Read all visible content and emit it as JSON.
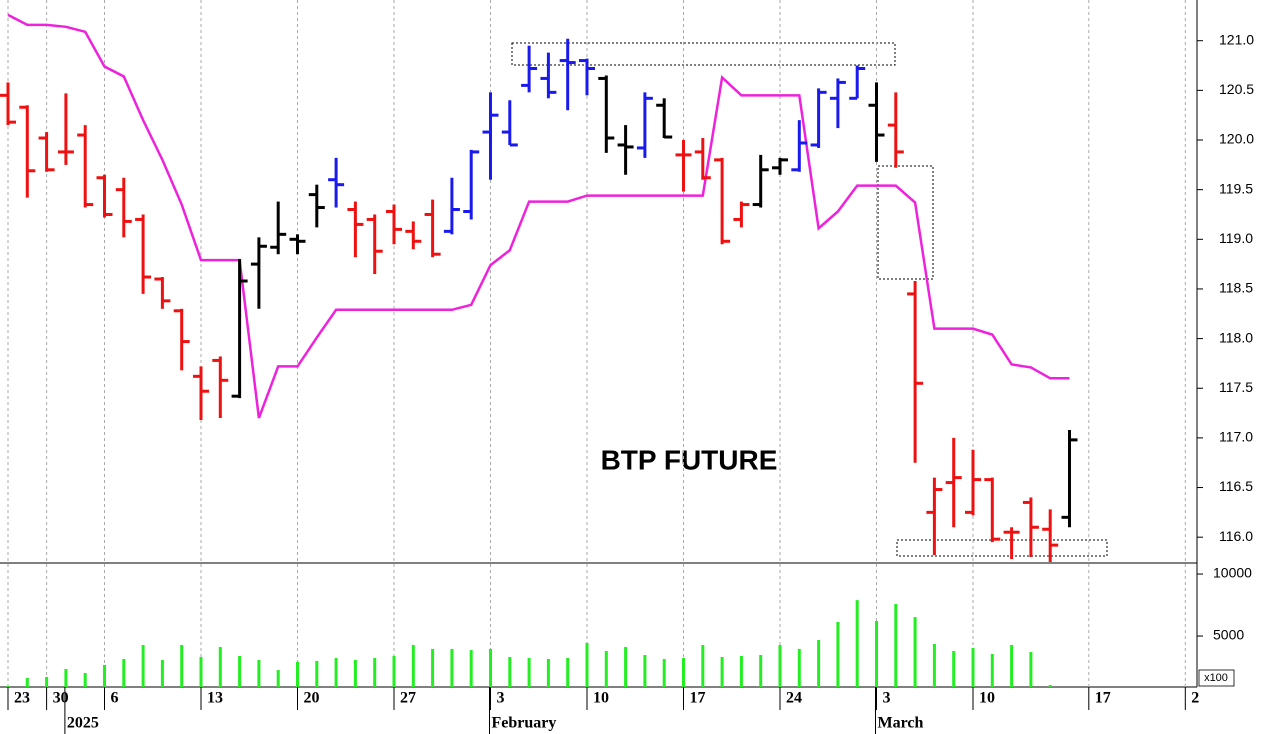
{
  "chart_data": {
    "type": "ohlc",
    "title": "BTP FUTURE",
    "categories": [
      "23",
      null,
      "30",
      null,
      null,
      "6",
      null,
      null,
      null,
      null,
      "13",
      null,
      null,
      null,
      null,
      "20",
      null,
      null,
      null,
      null,
      "27",
      null,
      null,
      null,
      null,
      "3",
      null,
      null,
      null,
      null,
      "10",
      null,
      null,
      null,
      null,
      "17",
      null,
      null,
      null,
      null,
      "24",
      null,
      null,
      null,
      null,
      "3",
      null,
      null,
      null,
      null,
      "10",
      null,
      null,
      null,
      null,
      null,
      "17",
      null,
      null,
      null,
      null,
      "2"
    ],
    "periods": [
      null,
      null,
      null,
      "2025",
      null,
      null,
      null,
      null,
      null,
      null,
      null,
      null,
      null,
      null,
      null,
      null,
      null,
      null,
      null,
      null,
      null,
      null,
      null,
      null,
      null,
      "February",
      null,
      null,
      null,
      null,
      null,
      null,
      null,
      null,
      null,
      null,
      null,
      null,
      null,
      null,
      null,
      null,
      null,
      null,
      null,
      "March",
      null,
      null,
      null,
      null,
      null,
      null,
      null,
      null,
      null,
      null,
      null,
      null,
      null,
      null,
      null,
      null
    ],
    "open": [
      120.45,
      120.33,
      120.02,
      119.88,
      120.05,
      119.62,
      119.5,
      119.2,
      118.6,
      118.28,
      117.62,
      117.78,
      117.42,
      118.75,
      118.92,
      119.0,
      119.45,
      119.6,
      119.3,
      119.2,
      119.28,
      119.08,
      119.25,
      119.08,
      119.28,
      120.08,
      120.08,
      120.55,
      120.62,
      120.8,
      120.8,
      120.62,
      119.95,
      119.92,
      120.35,
      119.85,
      119.88,
      119.8,
      119.2,
      119.35,
      119.72,
      119.7,
      119.95,
      120.42,
      120.42,
      120.35,
      120.15,
      118.45,
      116.25,
      116.55,
      116.25,
      116.58,
      116.05,
      116.35,
      116.08,
      116.2,
      null,
      null,
      null,
      null,
      null,
      null
    ],
    "high": [
      120.58,
      120.35,
      120.08,
      120.47,
      120.15,
      119.65,
      119.62,
      119.25,
      118.62,
      118.3,
      117.72,
      117.82,
      118.8,
      119.02,
      119.38,
      119.05,
      119.55,
      119.82,
      119.38,
      119.25,
      119.35,
      119.18,
      119.4,
      119.62,
      119.9,
      120.48,
      120.4,
      120.95,
      120.88,
      121.02,
      120.82,
      120.65,
      120.15,
      120.48,
      120.42,
      120.0,
      120.02,
      119.82,
      119.38,
      119.85,
      119.82,
      120.2,
      120.52,
      120.62,
      120.75,
      120.58,
      120.48,
      118.58,
      116.6,
      117.0,
      116.88,
      116.6,
      116.1,
      116.4,
      116.28,
      117.08,
      null,
      null,
      null,
      null,
      null,
      null
    ],
    "low": [
      120.15,
      119.42,
      119.68,
      119.75,
      119.32,
      119.22,
      119.02,
      118.45,
      118.3,
      117.68,
      117.18,
      117.2,
      117.4,
      118.3,
      118.85,
      118.85,
      119.12,
      119.32,
      118.82,
      118.65,
      118.95,
      118.9,
      118.82,
      119.05,
      119.2,
      119.6,
      119.95,
      120.48,
      120.42,
      120.3,
      120.45,
      119.87,
      119.65,
      119.82,
      120.02,
      119.48,
      119.6,
      118.95,
      119.12,
      119.32,
      119.65,
      119.68,
      119.92,
      120.12,
      120.42,
      119.78,
      119.72,
      116.75,
      115.82,
      116.1,
      116.22,
      115.95,
      115.78,
      115.8,
      115.75,
      116.1,
      null,
      null,
      null,
      null,
      null,
      null
    ],
    "close": [
      120.18,
      119.69,
      119.7,
      119.88,
      119.35,
      119.25,
      119.18,
      118.62,
      118.38,
      117.97,
      117.47,
      117.58,
      118.58,
      118.93,
      119.05,
      118.98,
      119.32,
      119.55,
      119.15,
      118.88,
      119.1,
      118.98,
      118.85,
      119.3,
      119.88,
      120.25,
      119.95,
      120.72,
      120.48,
      120.78,
      120.72,
      120.02,
      119.93,
      120.42,
      120.03,
      119.85,
      119.62,
      118.98,
      119.35,
      119.7,
      119.8,
      119.97,
      120.48,
      120.58,
      120.72,
      120.05,
      119.88,
      117.55,
      116.48,
      116.6,
      116.58,
      115.98,
      116.05,
      116.1,
      115.92,
      116.98,
      null,
      null,
      null,
      null,
      null,
      null
    ],
    "bar_colors": [
      "#ee1111",
      "#ee1111",
      "#ee1111",
      "#ee1111",
      "#ee1111",
      "#ee1111",
      "#ee1111",
      "#ee1111",
      "#ee1111",
      "#ee1111",
      "#ee1111",
      "#ee1111",
      "#000000",
      "#000000",
      "#000000",
      "#000000",
      "#000000",
      "#1a1aee",
      "#ee1111",
      "#ee1111",
      "#ee1111",
      "#ee1111",
      "#ee1111",
      "#1a1aee",
      "#1a1aee",
      "#1a1aee",
      "#1a1aee",
      "#1a1aee",
      "#1a1aee",
      "#1a1aee",
      "#1a1aee",
      "#000000",
      "#000000",
      "#1a1aee",
      "#000000",
      "#ee1111",
      "#ee1111",
      "#ee1111",
      "#ee1111",
      "#000000",
      "#000000",
      "#1a1aee",
      "#1a1aee",
      "#1a1aee",
      "#1a1aee",
      "#000000",
      "#ee1111",
      "#ee1111",
      "#ee1111",
      "#ee1111",
      "#ee1111",
      "#ee1111",
      "#ee1111",
      "#ee1111",
      "#ee1111",
      "#000000",
      null,
      null,
      null,
      null,
      null,
      null
    ],
    "overlay": {
      "color": "#ee22dd",
      "values": [
        121.26,
        121.16,
        121.16,
        121.14,
        121.09,
        120.74,
        120.64,
        120.2,
        119.8,
        119.35,
        118.79,
        118.79,
        118.79,
        117.2,
        117.72,
        117.72,
        118.01,
        118.29,
        118.29,
        118.29,
        118.29,
        118.29,
        118.29,
        118.29,
        118.34,
        118.74,
        118.89,
        119.38,
        119.38,
        119.38,
        119.44,
        119.44,
        119.44,
        119.44,
        119.44,
        119.44,
        119.44,
        120.63,
        120.45,
        120.45,
        120.45,
        120.45,
        119.11,
        119.28,
        119.54,
        119.54,
        119.54,
        119.37,
        118.1,
        118.1,
        118.1,
        118.04,
        117.74,
        117.71,
        117.6,
        117.6,
        null,
        null,
        null,
        null,
        null,
        null
      ]
    },
    "ylim": [
      115.74,
      121.41
    ],
    "yticks": [
      {
        "value": 116,
        "label": "116.0"
      },
      116.5,
      {
        "value": 117,
        "label": "117.0"
      },
      117.5,
      {
        "value": 118,
        "label": "118.0"
      },
      118.5,
      {
        "value": 119,
        "label": "119.0"
      },
      119.5,
      {
        "value": 120,
        "label": "120.0"
      },
      120.5,
      {
        "value": 121,
        "label": "121.0"
      }
    ],
    "grid": true,
    "volume": {
      "color": "#22ee22",
      "unit_label": "x100",
      "values": [
        970,
        1620,
        1700,
        2340,
        2020,
        2670,
        3150,
        4280,
        3070,
        4280,
        3310,
        4120,
        3390,
        3070,
        2260,
        2910,
        2990,
        3230,
        3070,
        3230,
        3390,
        4280,
        3960,
        3960,
        3870,
        3960,
        3310,
        3230,
        3150,
        3230,
        4440,
        3790,
        4120,
        3470,
        3150,
        3230,
        4280,
        3310,
        3390,
        3470,
        4280,
        3960,
        4680,
        6130,
        7900,
        6210,
        7580,
        6530,
        4360,
        3790,
        4040,
        3550,
        4280,
        3710,
        1050,
        null,
        null,
        null,
        null,
        null,
        null,
        null
      ],
      "ylim": [
        890,
        10890
      ],
      "yticks": [
        5000,
        10000
      ]
    }
  }
}
